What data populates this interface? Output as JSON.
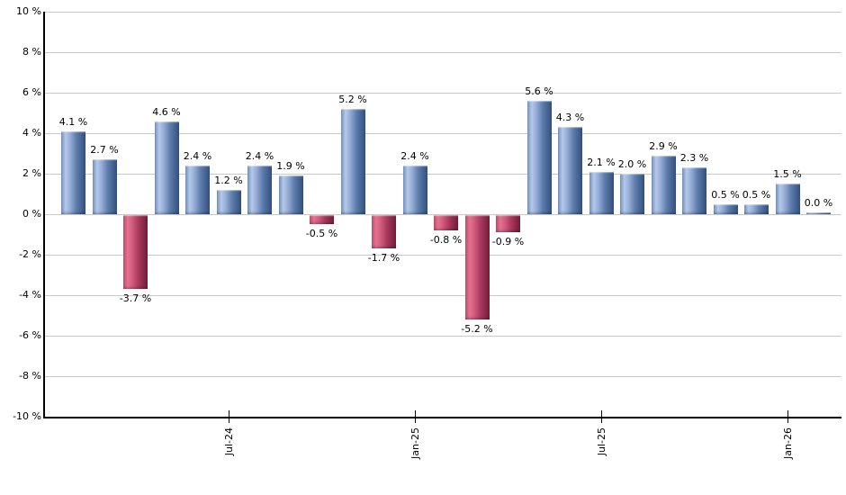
{
  "chart_data": {
    "type": "bar",
    "title": "",
    "xlabel": "",
    "ylabel": "",
    "ylim": [
      -10,
      10
    ],
    "y_step": 2,
    "grid": true,
    "legend": false,
    "values": [
      4.1,
      2.7,
      -3.7,
      4.6,
      2.4,
      1.2,
      2.4,
      1.9,
      -0.5,
      5.2,
      -1.7,
      2.4,
      -0.8,
      -5.2,
      -0.9,
      5.6,
      4.3,
      2.1,
      2.0,
      2.9,
      2.3,
      0.5,
      0.5,
      1.5,
      0.0
    ],
    "bar_labels": [
      "4.1 %",
      "2.7 %",
      "-3.7 %",
      "4.6 %",
      "2.4 %",
      "1.2 %",
      "2.4 %",
      "1.9 %",
      "-0.5 %",
      "5.2 %",
      "-1.7 %",
      "2.4 %",
      "-0.8 %",
      "-5.2 %",
      "-0.9 %",
      "5.6 %",
      "4.3 %",
      "2.1 %",
      "2.0 %",
      "2.9 %",
      "2.3 %",
      "0.5 %",
      "0.5 %",
      "1.5 %",
      "0.0 %"
    ],
    "y_tick_labels": [
      "10 %",
      "8 %",
      "6 %",
      "4 %",
      "2 %",
      "0 %",
      "-2 %",
      "-4 %",
      "-6 %",
      "-8 %",
      "-10 %"
    ],
    "x_ticks": [
      {
        "label": "Jul-24",
        "bar_index": 5
      },
      {
        "label": "Jan-25",
        "bar_index": 11
      },
      {
        "label": "Jul-25",
        "bar_index": 17
      },
      {
        "label": "Jan-26",
        "bar_index": 23
      }
    ],
    "colors": {
      "positive_bar": [
        "#7191c1",
        "#b5c8e8",
        "#93abd4",
        "#5e7dac",
        "#32507e"
      ],
      "negative_bar": [
        "#c04a6d",
        "#e5728f",
        "#d05a7c",
        "#a93a5e",
        "#701d38"
      ],
      "gridline": "#c9c9c9",
      "axis": "#000000",
      "text": "#000000",
      "background": "#ffffff"
    }
  }
}
